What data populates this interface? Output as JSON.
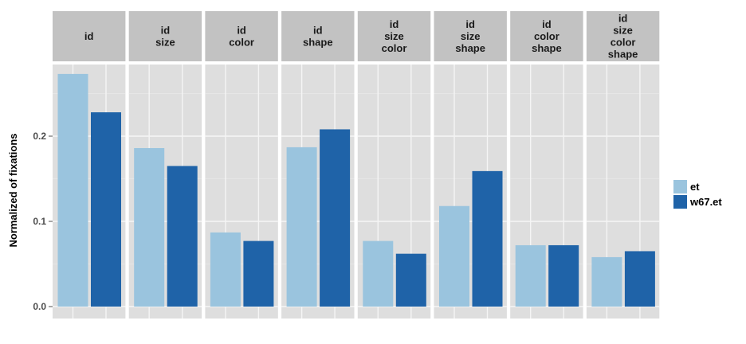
{
  "chart_data": {
    "type": "bar",
    "ylabel": "Normalized of fixations",
    "ylim": [
      0,
      0.3
    ],
    "yticks": [
      0.0,
      0.1,
      0.2
    ],
    "ytick_labels": [
      "0.0",
      "0.1",
      "0.2"
    ],
    "grid": true,
    "legend_position": "right",
    "facets": [
      {
        "label": [
          "id"
        ],
        "values": [
          0.273,
          0.228
        ]
      },
      {
        "label": [
          "id",
          "size"
        ],
        "values": [
          0.186,
          0.165
        ]
      },
      {
        "label": [
          "id",
          "color"
        ],
        "values": [
          0.087,
          0.077
        ]
      },
      {
        "label": [
          "id",
          "shape"
        ],
        "values": [
          0.187,
          0.208
        ]
      },
      {
        "label": [
          "id",
          "size",
          "color"
        ],
        "values": [
          0.077,
          0.062
        ]
      },
      {
        "label": [
          "id",
          "size",
          "shape"
        ],
        "values": [
          0.118,
          0.159
        ]
      },
      {
        "label": [
          "id",
          "color",
          "shape"
        ],
        "values": [
          0.072,
          0.072
        ]
      },
      {
        "label": [
          "id",
          "size",
          "color",
          "shape"
        ],
        "values": [
          0.058,
          0.065
        ]
      }
    ],
    "series": [
      {
        "name": "et",
        "color": "#9ac4de"
      },
      {
        "name": "w67.et",
        "color": "#1f63a8"
      }
    ]
  }
}
